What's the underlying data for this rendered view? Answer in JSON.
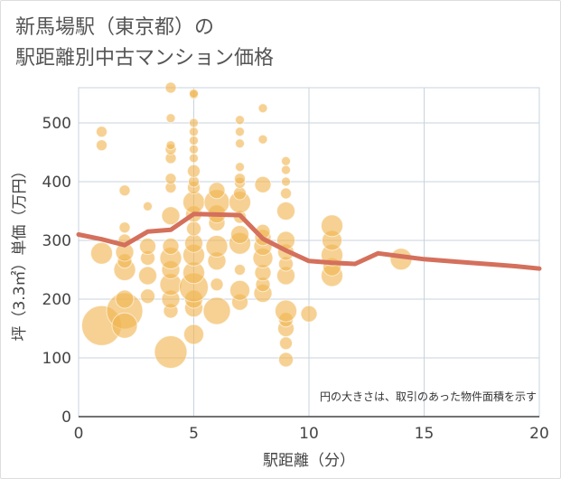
{
  "title_lines": [
    "新馬場駅（東京都）の",
    "駅距離別中古マンション価格"
  ],
  "chart_data": {
    "type": "scatter",
    "xlabel": "駅距離（分）",
    "ylabel": "坪（3.3㎡）単価（万円）",
    "xlim": [
      0,
      20
    ],
    "ylim": [
      0,
      560
    ],
    "xticks": [
      0,
      5,
      10,
      15,
      20
    ],
    "yticks": [
      0,
      100,
      200,
      300,
      400,
      500
    ],
    "grid": true,
    "note": "円の大きさは、取引のあった物件面積を示す",
    "bubble_color": "#f0b450",
    "line_color": "#d4705c",
    "scatter": [
      [
        1,
        155,
        22
      ],
      [
        1,
        278,
        12
      ],
      [
        1,
        462,
        6
      ],
      [
        1,
        485,
        6
      ],
      [
        2,
        180,
        20
      ],
      [
        2,
        155,
        14
      ],
      [
        2,
        200,
        10
      ],
      [
        2,
        250,
        12
      ],
      [
        2,
        265,
        8
      ],
      [
        2,
        280,
        10
      ],
      [
        2,
        300,
        7
      ],
      [
        2,
        322,
        6
      ],
      [
        2,
        385,
        6
      ],
      [
        3,
        205,
        8
      ],
      [
        3,
        240,
        10
      ],
      [
        3,
        270,
        8
      ],
      [
        3,
        290,
        9
      ],
      [
        3,
        358,
        5
      ],
      [
        4,
        110,
        18
      ],
      [
        4,
        180,
        8
      ],
      [
        4,
        200,
        10
      ],
      [
        4,
        225,
        12
      ],
      [
        4,
        250,
        10
      ],
      [
        4,
        270,
        12
      ],
      [
        4,
        290,
        9
      ],
      [
        4,
        342,
        10
      ],
      [
        4,
        390,
        6
      ],
      [
        4,
        405,
        6
      ],
      [
        4,
        440,
        6
      ],
      [
        4,
        455,
        6
      ],
      [
        4,
        462,
        5
      ],
      [
        4,
        508,
        5
      ],
      [
        4,
        560,
        6
      ],
      [
        5,
        140,
        11
      ],
      [
        5,
        185,
        10
      ],
      [
        5,
        200,
        10
      ],
      [
        5,
        220,
        16
      ],
      [
        5,
        245,
        12
      ],
      [
        5,
        275,
        12
      ],
      [
        5,
        295,
        10
      ],
      [
        5,
        320,
        8
      ],
      [
        5,
        345,
        9
      ],
      [
        5,
        365,
        12
      ],
      [
        5,
        390,
        7
      ],
      [
        5,
        400,
        6
      ],
      [
        5,
        418,
        7
      ],
      [
        5,
        440,
        5
      ],
      [
        5,
        455,
        5
      ],
      [
        5,
        470,
        5
      ],
      [
        5,
        485,
        5
      ],
      [
        5,
        500,
        5
      ],
      [
        5,
        548,
        5
      ],
      [
        5,
        550,
        5
      ],
      [
        6,
        180,
        15
      ],
      [
        6,
        225,
        7
      ],
      [
        6,
        265,
        10
      ],
      [
        6,
        290,
        12
      ],
      [
        6,
        330,
        9
      ],
      [
        6,
        345,
        10
      ],
      [
        6,
        365,
        14
      ],
      [
        6,
        385,
        9
      ],
      [
        7,
        195,
        9
      ],
      [
        7,
        215,
        11
      ],
      [
        7,
        250,
        6
      ],
      [
        7,
        295,
        12
      ],
      [
        7,
        310,
        10
      ],
      [
        7,
        340,
        7
      ],
      [
        7,
        365,
        12
      ],
      [
        7,
        380,
        7
      ],
      [
        7,
        398,
        6
      ],
      [
        7,
        405,
        6
      ],
      [
        7,
        425,
        5
      ],
      [
        7,
        465,
        5
      ],
      [
        7,
        485,
        5
      ],
      [
        7,
        505,
        5
      ],
      [
        8,
        210,
        10
      ],
      [
        8,
        225,
        8
      ],
      [
        8,
        245,
        9
      ],
      [
        8,
        270,
        11
      ],
      [
        8,
        290,
        10
      ],
      [
        8,
        305,
        9
      ],
      [
        8,
        315,
        8
      ],
      [
        8,
        395,
        9
      ],
      [
        8,
        472,
        5
      ],
      [
        8,
        525,
        5
      ],
      [
        9,
        97,
        8
      ],
      [
        9,
        125,
        7
      ],
      [
        9,
        150,
        9
      ],
      [
        9,
        165,
        8
      ],
      [
        9,
        180,
        12
      ],
      [
        9,
        240,
        10
      ],
      [
        9,
        260,
        8
      ],
      [
        9,
        280,
        9
      ],
      [
        9,
        300,
        10
      ],
      [
        9,
        350,
        10
      ],
      [
        9,
        380,
        6
      ],
      [
        9,
        400,
        5
      ],
      [
        9,
        420,
        5
      ],
      [
        9,
        435,
        5
      ],
      [
        10,
        175,
        9
      ],
      [
        11,
        240,
        12
      ],
      [
        11,
        255,
        10
      ],
      [
        11,
        275,
        12
      ],
      [
        11,
        300,
        11
      ],
      [
        11,
        325,
        12
      ],
      [
        14,
        268,
        12
      ]
    ],
    "series": [
      {
        "x": [
          0,
          1,
          2,
          3,
          4,
          5,
          6,
          7,
          8,
          9,
          10,
          11,
          12,
          13,
          14,
          15,
          16,
          17,
          18,
          19,
          20
        ],
        "y": [
          310,
          302,
          292,
          315,
          318,
          345,
          344,
          343,
          303,
          283,
          265,
          262,
          260,
          278,
          273,
          268,
          265,
          262,
          259,
          256,
          252
        ]
      }
    ]
  }
}
